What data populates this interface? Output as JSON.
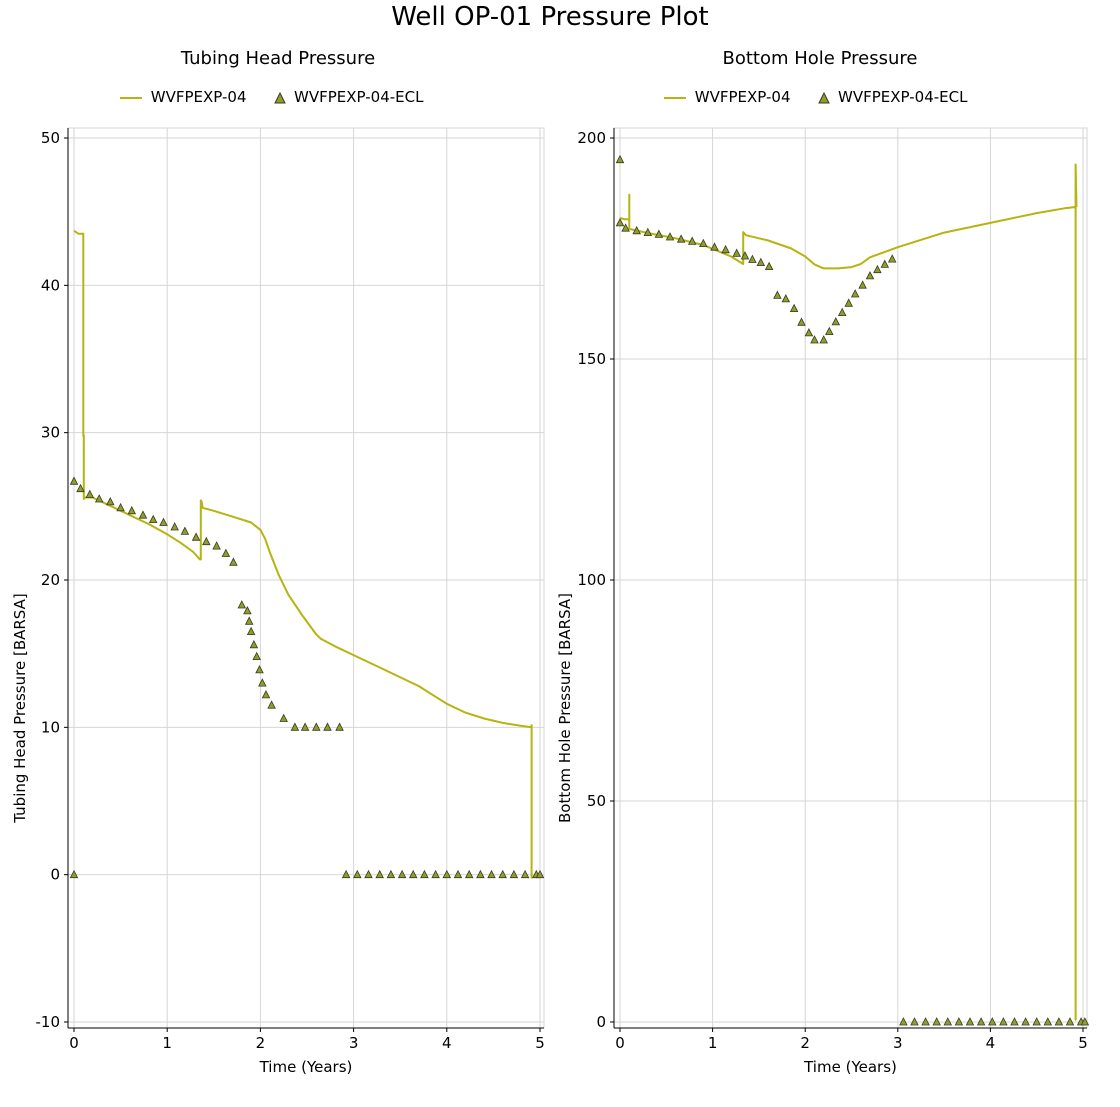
{
  "title": "Well OP-01 Pressure Plot",
  "colors": {
    "series": "#b5b410",
    "marker_fill": "#8e9d2c",
    "marker_stroke": "#3a3a20",
    "grid": "#d6d6d6"
  },
  "legend": {
    "line_name": "WVFPEXP-04",
    "marker_name": "WVFPEXP-04-ECL"
  },
  "chart_data": [
    {
      "type": "line",
      "title": "Tubing Head Pressure",
      "xlabel": "Time (Years)",
      "ylabel": "Tubing Head Pressure [BARSA]",
      "xlim": [
        0,
        5
      ],
      "ylim": [
        -10,
        50
      ],
      "xticks": [
        0,
        1,
        2,
        3,
        4,
        5
      ],
      "yticks": [
        -10,
        0,
        10,
        20,
        30,
        40,
        50
      ],
      "grid": true,
      "legend_position": "top",
      "series": [
        {
          "name": "WVFPEXP-04",
          "kind": "line",
          "x": [
            0,
            0.05,
            0.1,
            0.1,
            0.105,
            0.105,
            0.11,
            0.2,
            0.4,
            0.6,
            0.8,
            1.0,
            1.15,
            1.28,
            1.35,
            1.36,
            1.36,
            1.37,
            1.38,
            1.5,
            1.7,
            1.9,
            2.0,
            2.05,
            2.1,
            2.2,
            2.3,
            2.45,
            2.6,
            2.65,
            2.8,
            3.0,
            3.3,
            3.7,
            4.0,
            4.2,
            4.4,
            4.6,
            4.8,
            4.91,
            4.91,
            4.91
          ],
          "y": [
            43.7,
            43.5,
            43.5,
            29.8,
            29.8,
            25.5,
            25.6,
            25.6,
            25.0,
            24.4,
            23.8,
            23.1,
            22.5,
            21.9,
            21.4,
            21.4,
            25.4,
            25.3,
            24.9,
            24.7,
            24.3,
            23.9,
            23.4,
            22.8,
            21.9,
            20.3,
            19.0,
            17.6,
            16.3,
            16.0,
            15.5,
            14.9,
            14.0,
            12.8,
            11.6,
            11.0,
            10.6,
            10.3,
            10.1,
            10.0,
            -0.2,
            10.2
          ]
        },
        {
          "name": "WVFPEXP-04-ECL",
          "kind": "markers",
          "x": [
            0,
            0,
            0.07,
            0.17,
            0.27,
            0.39,
            0.5,
            0.62,
            0.74,
            0.85,
            0.96,
            1.08,
            1.19,
            1.31,
            1.42,
            1.53,
            1.63,
            1.71,
            1.8,
            1.86,
            1.88,
            1.9,
            1.93,
            1.96,
            1.99,
            2.02,
            2.06,
            2.12,
            2.25,
            2.37,
            2.48,
            2.6,
            2.72,
            2.85,
            2.92,
            3.04,
            3.16,
            3.28,
            3.4,
            3.52,
            3.64,
            3.76,
            3.88,
            4.0,
            4.12,
            4.24,
            4.36,
            4.48,
            4.6,
            4.72,
            4.84,
            4.96,
            5.0
          ],
          "y": [
            26.7,
            0,
            26.2,
            25.8,
            25.5,
            25.3,
            24.9,
            24.7,
            24.4,
            24.1,
            23.9,
            23.6,
            23.3,
            22.9,
            22.6,
            22.3,
            21.8,
            21.2,
            18.3,
            17.9,
            17.2,
            16.5,
            15.6,
            14.8,
            13.9,
            13.0,
            12.2,
            11.5,
            10.6,
            10.0,
            10.0,
            10.0,
            10.0,
            10.0,
            0,
            0,
            0,
            0,
            0,
            0,
            0,
            0,
            0,
            0,
            0,
            0,
            0,
            0,
            0,
            0,
            0,
            0,
            0
          ]
        }
      ]
    },
    {
      "type": "line",
      "title": "Bottom Hole Pressure",
      "xlabel": "Time (Years)",
      "ylabel": "Bottom Hole Pressure [BARSA]",
      "xlim": [
        0,
        5
      ],
      "ylim": [
        0,
        200
      ],
      "xticks": [
        0,
        1,
        2,
        3,
        4,
        5
      ],
      "yticks": [
        0,
        50,
        100,
        150,
        200
      ],
      "grid": true,
      "legend_position": "top",
      "series": [
        {
          "name": "WVFPEXP-04",
          "kind": "line",
          "x": [
            0,
            0.05,
            0.1,
            0.1,
            0.1,
            0.1,
            0.11,
            0.3,
            0.6,
            0.9,
            1.2,
            1.33,
            1.33,
            1.34,
            1.36,
            1.6,
            1.85,
            2.0,
            2.1,
            2.2,
            2.35,
            2.5,
            2.6,
            2.7,
            3.0,
            3.5,
            4.0,
            4.5,
            4.8,
            4.92,
            4.92,
            4.92,
            4.93
          ],
          "y": [
            181.9,
            181.6,
            181.6,
            187.2,
            181.6,
            179.5,
            179.4,
            178.5,
            177.3,
            175.8,
            173.2,
            171.5,
            178.7,
            178.5,
            178.0,
            176.8,
            175.0,
            173.2,
            171.4,
            170.5,
            170.5,
            170.8,
            171.5,
            173.0,
            175.3,
            178.6,
            180.8,
            183.0,
            184.1,
            184.4,
            0.5,
            194.0,
            184.4
          ]
        },
        {
          "name": "WVFPEXP-04-ECL",
          "kind": "markers",
          "x": [
            0,
            0,
            0.06,
            0.18,
            0.3,
            0.42,
            0.54,
            0.66,
            0.78,
            0.9,
            1.02,
            1.14,
            1.26,
            1.35,
            1.43,
            1.52,
            1.61,
            1.7,
            1.79,
            1.88,
            1.96,
            2.04,
            2.1,
            2.2,
            2.26,
            2.33,
            2.4,
            2.47,
            2.54,
            2.62,
            2.7,
            2.78,
            2.86,
            2.94,
            3.06,
            3.18,
            3.3,
            3.42,
            3.54,
            3.66,
            3.78,
            3.9,
            4.02,
            4.14,
            4.26,
            4.38,
            4.5,
            4.62,
            4.74,
            4.86,
            4.98,
            5.02
          ],
          "y": [
            195.1,
            180.8,
            179.6,
            179.0,
            178.6,
            178.2,
            177.6,
            177.1,
            176.6,
            176.1,
            175.3,
            174.7,
            173.9,
            173.3,
            172.5,
            171.8,
            170.9,
            164.4,
            163.6,
            161.4,
            158.3,
            155.9,
            154.3,
            154.3,
            156.2,
            158.4,
            160.5,
            162.6,
            164.7,
            166.7,
            168.8,
            170.2,
            171.4,
            172.6,
            0,
            0,
            0,
            0,
            0,
            0,
            0,
            0,
            0,
            0,
            0,
            0,
            0,
            0,
            0,
            0,
            0,
            0
          ]
        }
      ]
    }
  ]
}
